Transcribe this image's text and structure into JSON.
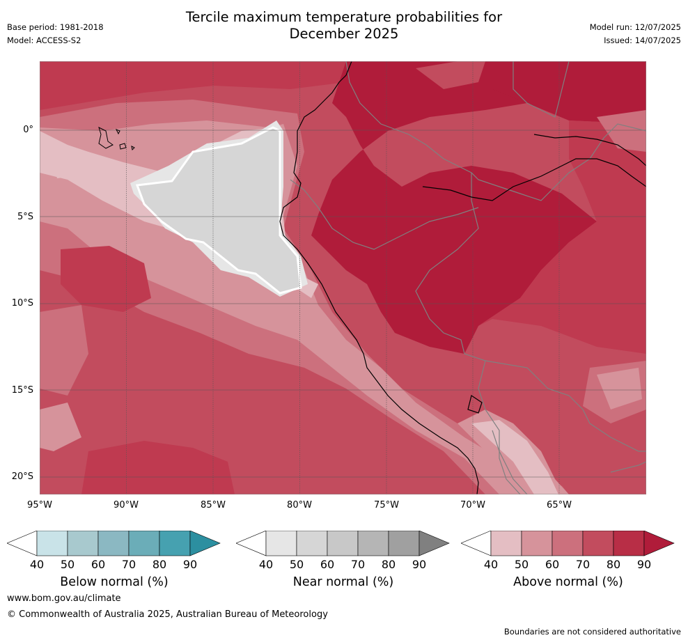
{
  "header": {
    "title_line1": "Tercile maximum temperature probabilities for",
    "title_line2": "December 2025",
    "base_period": "Base period: 1981-2018",
    "model": "Model: ACCESS-S2",
    "model_run": "Model run: 12/07/2025",
    "issued": "Issued: 14/07/2025"
  },
  "map": {
    "lat_ticks": [
      "0°",
      "5°S",
      "10°S",
      "15°S",
      "20°S"
    ],
    "lon_ticks": [
      "95°W",
      "90°W",
      "85°W",
      "80°W",
      "75°W",
      "70°W",
      "65°W"
    ],
    "colors": {
      "above_90": "#b01c3a",
      "above_80": "#bf3a50",
      "above_70": "#c24c5e",
      "above_60": "#cc707d",
      "above_50": "#d6939b",
      "above_40": "#e4bec3",
      "near_50": "#d6d6d6",
      "near_40": "#e6e6e6",
      "coast": "#000000",
      "border": "#808080"
    }
  },
  "legend": {
    "ticks": [
      "40",
      "50",
      "60",
      "70",
      "80",
      "90"
    ],
    "below": {
      "label": "Below normal (%)",
      "colors": [
        "#c9e3e8",
        "#a8c9ce",
        "#8bb8c2",
        "#6badb8",
        "#46a1b0",
        "#2c8fa0"
      ]
    },
    "near": {
      "label": "Near normal (%)",
      "colors": [
        "#e6e6e6",
        "#d6d6d6",
        "#c8c8c8",
        "#b5b5b5",
        "#a0a0a0",
        "#808080"
      ]
    },
    "above": {
      "label": "Above normal (%)",
      "colors": [
        "#e4bec3",
        "#d6939b",
        "#cc707d",
        "#c24c5e",
        "#b82e46",
        "#b01c3a"
      ]
    }
  },
  "footer": {
    "website": "www.bom.gov.au/climate",
    "copyright": "© Commonwealth of Australia 2025, Australian Bureau of Meteorology",
    "disclaimer": "Boundaries are not considered authoritative"
  }
}
